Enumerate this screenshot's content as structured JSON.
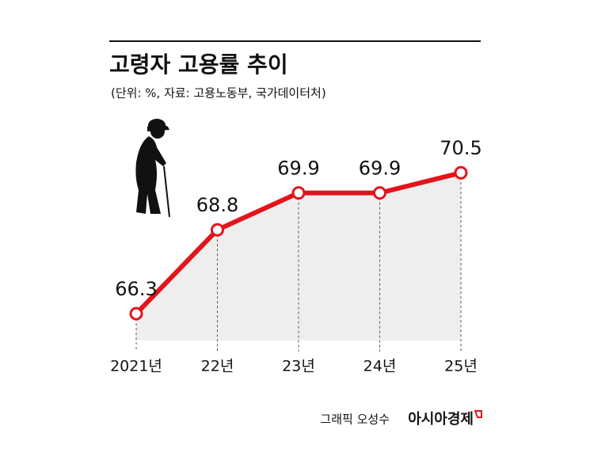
{
  "chart_data": {
    "type": "line",
    "title": "고령자 고용률 추이",
    "subtitle": "(단위: %, 자료: 고용노동부, 국가데이터처)",
    "categories": [
      "2021년",
      "22년",
      "23년",
      "24년",
      "25년"
    ],
    "values": [
      66.3,
      68.8,
      69.9,
      69.9,
      70.5
    ],
    "color": "#e3141c",
    "area_color": "#eeeeee",
    "ylim": [
      65.5,
      71
    ]
  },
  "credit": "그래픽 오성수",
  "brand": "아시아경제"
}
